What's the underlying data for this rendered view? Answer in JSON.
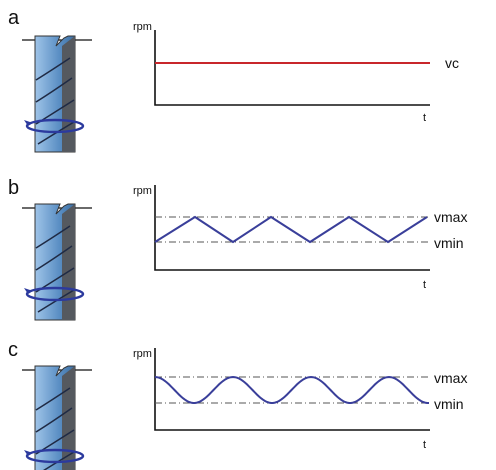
{
  "panels": [
    {
      "label": "a",
      "y_axis": "rpm",
      "x_axis": "t",
      "lines": [
        "vc"
      ]
    },
    {
      "label": "b",
      "y_axis": "rpm",
      "x_axis": "t",
      "lines": [
        "vmax",
        "vmin"
      ]
    },
    {
      "label": "c",
      "y_axis": "rpm",
      "x_axis": "t",
      "lines": [
        "vmax",
        "vmin"
      ]
    }
  ]
}
